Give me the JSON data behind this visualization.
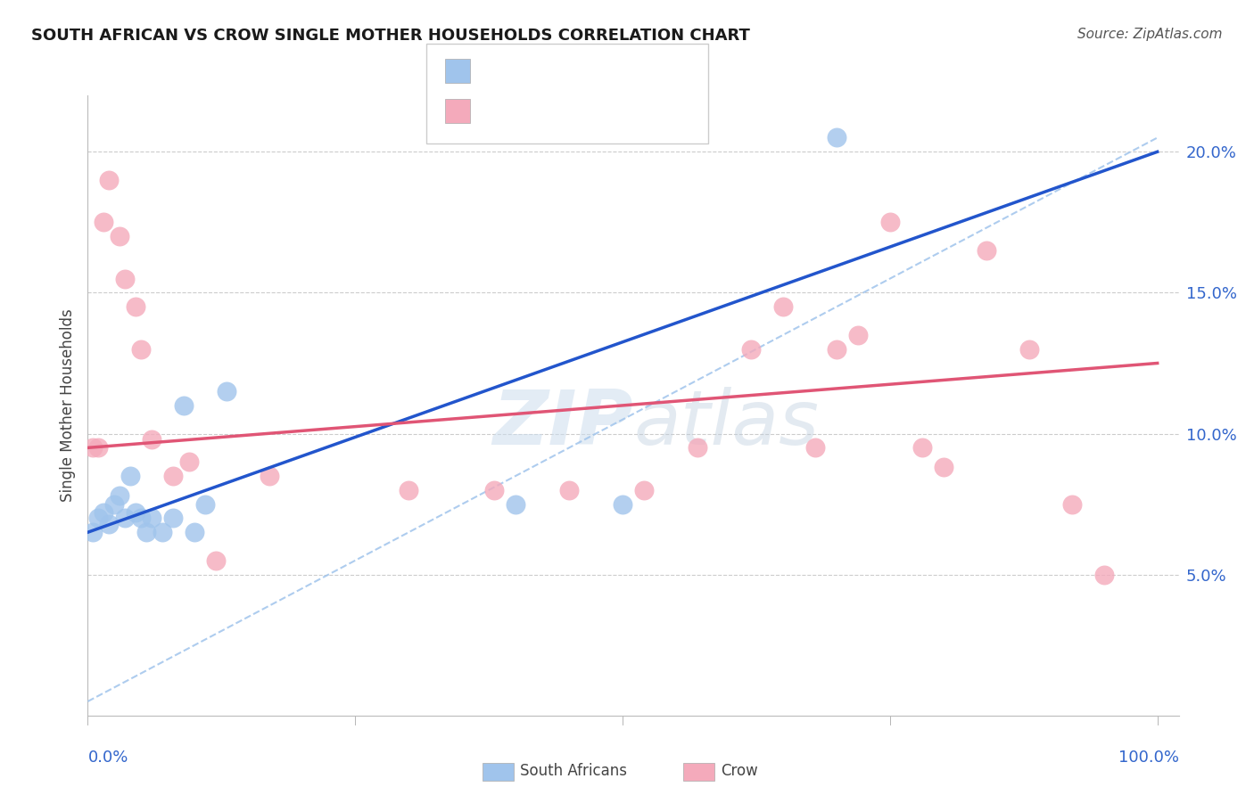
{
  "title": "SOUTH AFRICAN VS CROW SINGLE MOTHER HOUSEHOLDS CORRELATION CHART",
  "source": "Source: ZipAtlas.com",
  "ylabel": "Single Mother Households",
  "legend_label_blue": "South Africans",
  "legend_label_pink": "Crow",
  "blue_scatter_x": [
    0.5,
    1.0,
    1.5,
    2.0,
    2.5,
    3.0,
    3.5,
    4.0,
    4.5,
    5.0,
    5.5,
    6.0,
    7.0,
    8.0,
    9.0,
    10.0,
    11.0,
    13.0,
    40.0,
    50.0,
    70.0
  ],
  "blue_scatter_y": [
    6.5,
    7.0,
    7.2,
    6.8,
    7.5,
    7.8,
    7.0,
    8.5,
    7.2,
    7.0,
    6.5,
    7.0,
    6.5,
    7.0,
    11.0,
    6.5,
    7.5,
    11.5,
    7.5,
    7.5,
    20.5
  ],
  "pink_scatter_x": [
    0.5,
    1.0,
    1.5,
    2.0,
    3.0,
    3.5,
    4.5,
    5.0,
    6.0,
    8.0,
    9.5,
    12.0,
    17.0,
    30.0,
    38.0,
    45.0,
    52.0,
    57.0,
    62.0,
    65.0,
    68.0,
    70.0,
    72.0,
    75.0,
    78.0,
    80.0,
    84.0,
    88.0,
    92.0,
    95.0
  ],
  "pink_scatter_y": [
    9.5,
    9.5,
    17.5,
    19.0,
    17.0,
    15.5,
    14.5,
    13.0,
    9.8,
    8.5,
    9.0,
    5.5,
    8.5,
    8.0,
    8.0,
    8.0,
    8.0,
    9.5,
    13.0,
    14.5,
    9.5,
    13.0,
    13.5,
    17.5,
    9.5,
    8.8,
    16.5,
    13.0,
    7.5,
    5.0
  ],
  "blue_scatter_color": "#A0C4EC",
  "pink_scatter_color": "#F4AABB",
  "blue_line_color": "#2255CC",
  "pink_line_color": "#E05575",
  "dashed_line_color": "#A0C4EC",
  "grid_color": "#CCCCCC",
  "label_color": "#3366CC",
  "bg_color": "#FFFFFF",
  "ylim": [
    0.0,
    22.0
  ],
  "xlim": [
    0.0,
    102.0
  ],
  "yticks": [
    5.0,
    10.0,
    15.0,
    20.0
  ],
  "ytick_labels": [
    "5.0%",
    "10.0%",
    "15.0%",
    "20.0%"
  ],
  "title_fontsize": 13,
  "source_fontsize": 11,
  "tick_label_fontsize": 13
}
